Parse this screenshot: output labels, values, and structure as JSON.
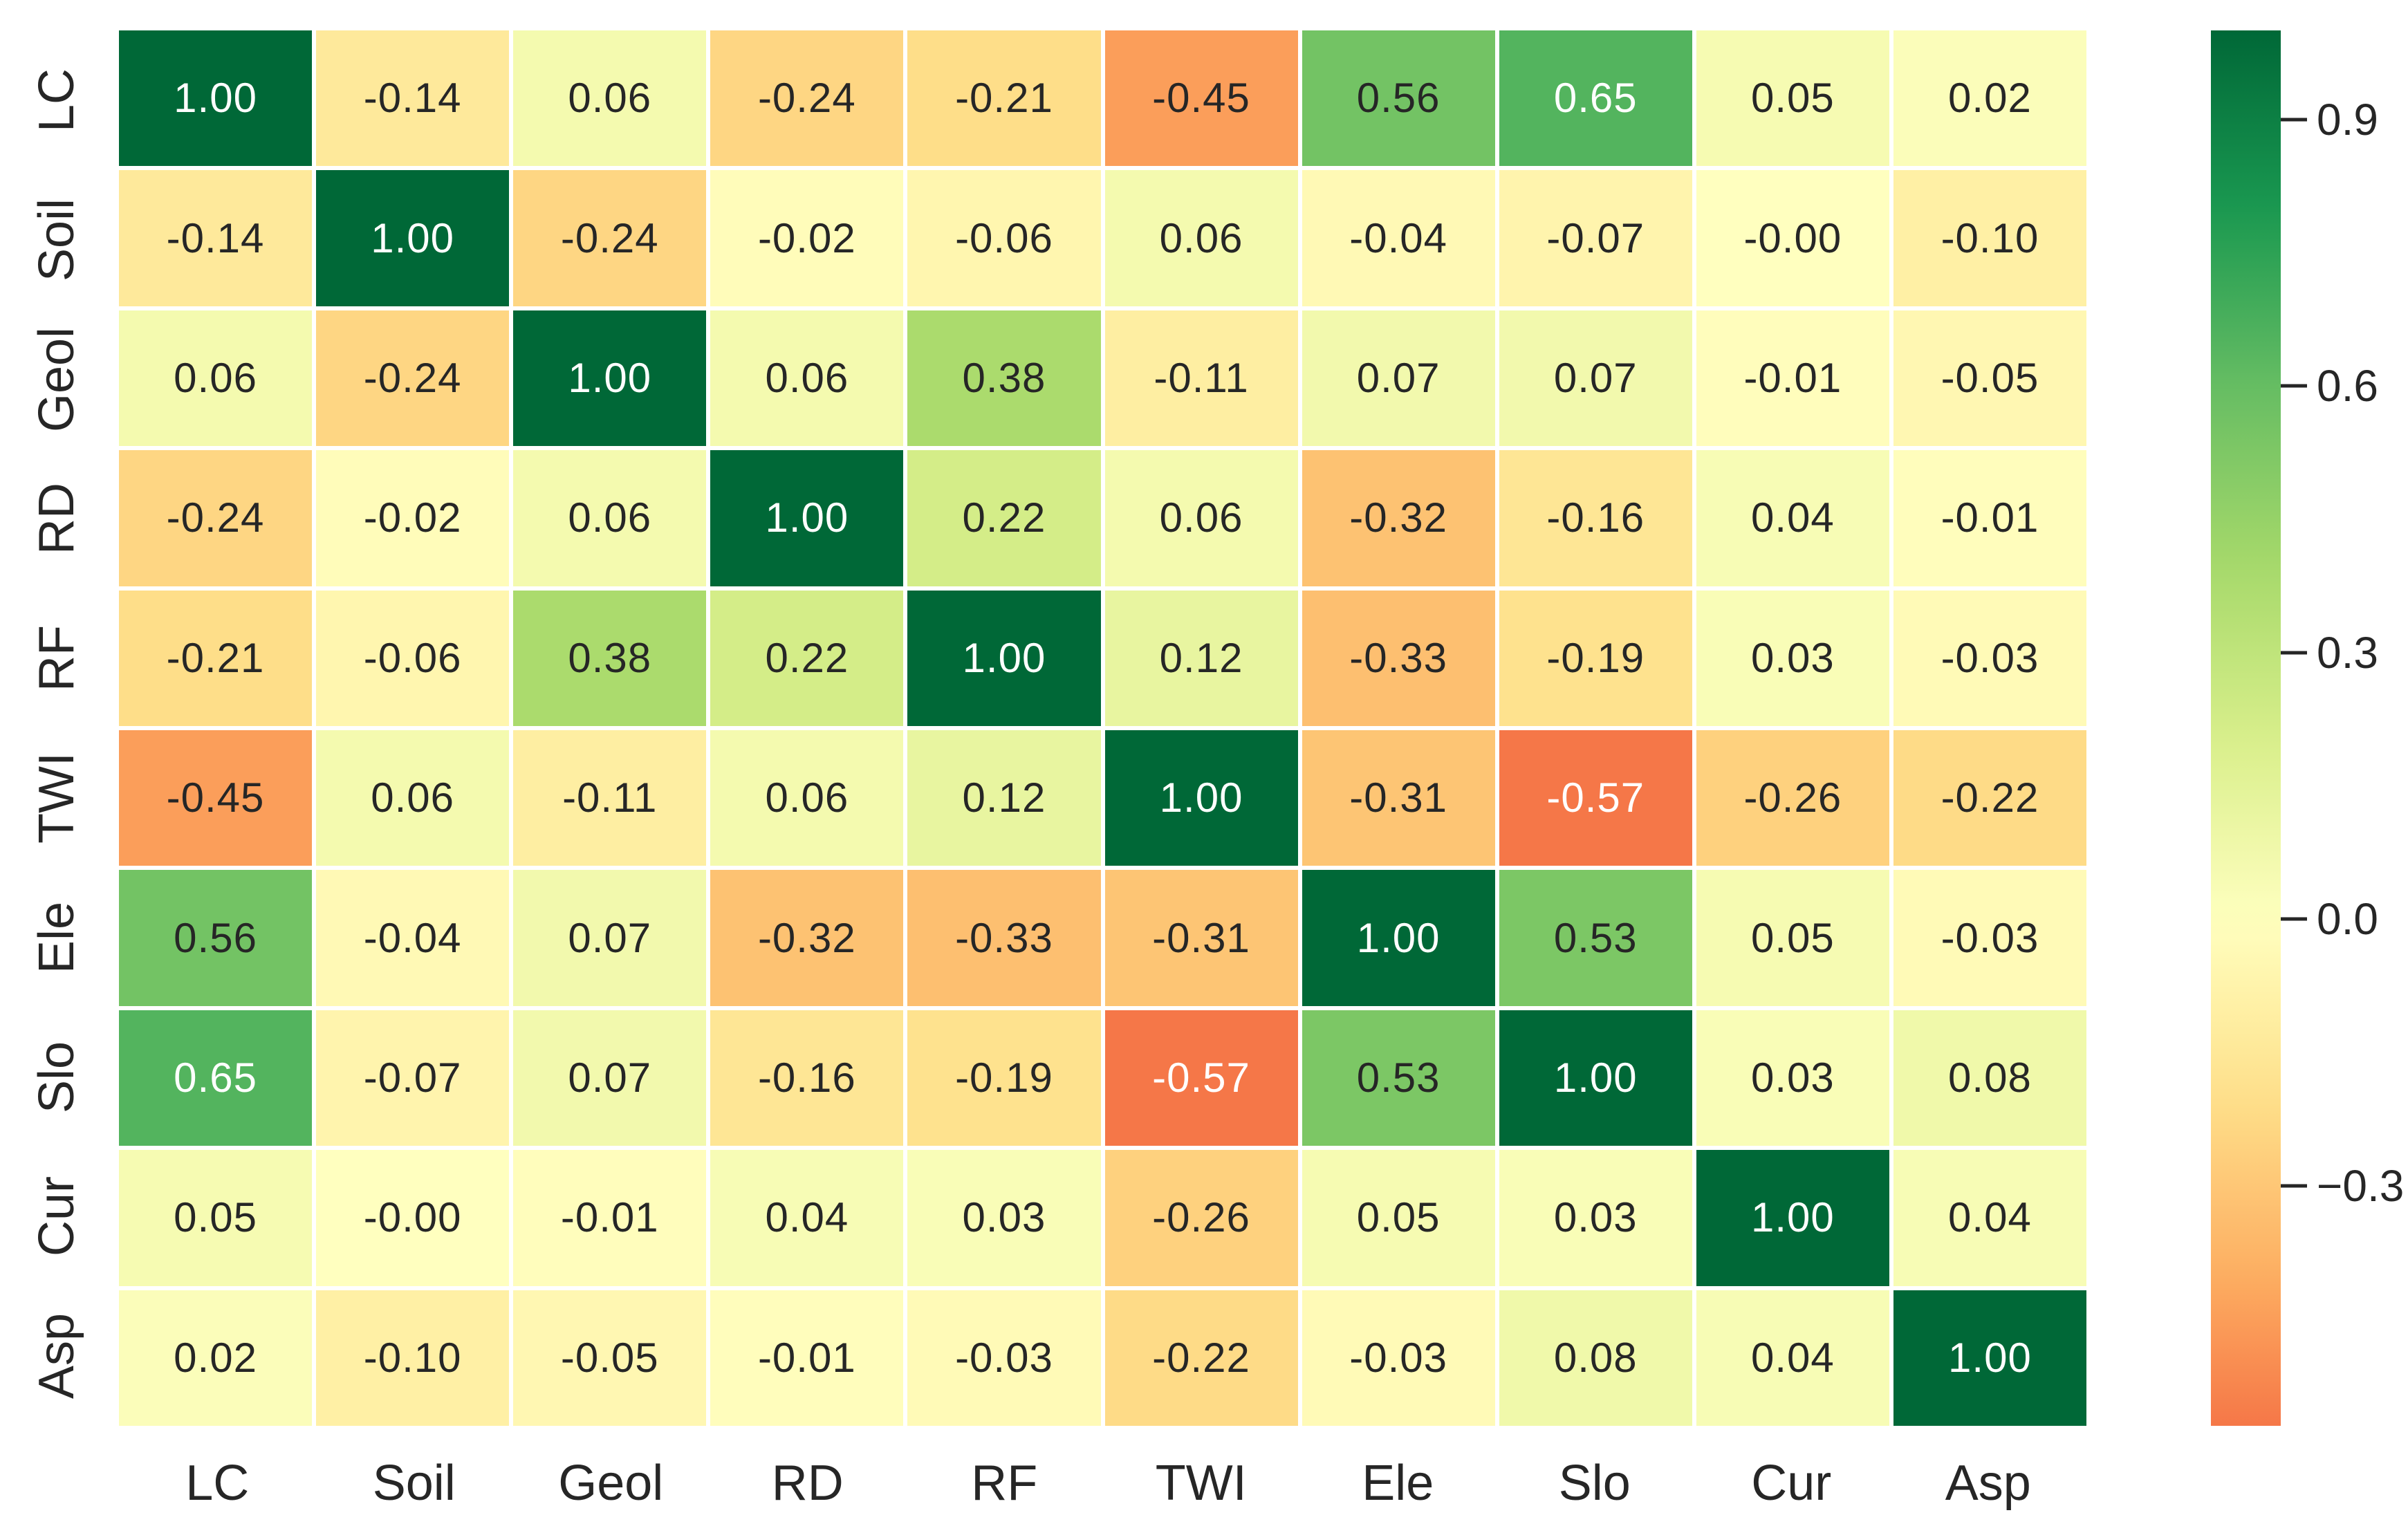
{
  "figure": {
    "background": "#ffffff",
    "axis_label_color": "#262626",
    "tick_color": "#262626"
  },
  "chart_data": {
    "type": "heatmap",
    "description": "Correlation matrix heatmap of landslide conditioning factors",
    "categories": [
      "LC",
      "Soil",
      "Geol",
      "RD",
      "RF",
      "TWI",
      "Ele",
      "Slo",
      "Cur",
      "Asp"
    ],
    "matrix": [
      [
        "1.00",
        "-0.14",
        "0.06",
        "-0.24",
        "-0.21",
        "-0.45",
        "0.56",
        "0.65",
        "0.05",
        "0.02"
      ],
      [
        "-0.14",
        "1.00",
        "-0.24",
        "-0.02",
        "-0.06",
        "0.06",
        "-0.04",
        "-0.07",
        "-0.00",
        "-0.10"
      ],
      [
        "0.06",
        "-0.24",
        "1.00",
        "0.06",
        "0.38",
        "-0.11",
        "0.07",
        "0.07",
        "-0.01",
        "-0.05"
      ],
      [
        "-0.24",
        "-0.02",
        "0.06",
        "1.00",
        "0.22",
        "0.06",
        "-0.32",
        "-0.16",
        "0.04",
        "-0.01"
      ],
      [
        "-0.21",
        "-0.06",
        "0.38",
        "0.22",
        "1.00",
        "0.12",
        "-0.33",
        "-0.19",
        "0.03",
        "-0.03"
      ],
      [
        "-0.45",
        "0.06",
        "-0.11",
        "0.06",
        "0.12",
        "1.00",
        "-0.31",
        "-0.57",
        "-0.26",
        "-0.22"
      ],
      [
        "0.56",
        "-0.04",
        "0.07",
        "-0.32",
        "-0.33",
        "-0.31",
        "1.00",
        "0.53",
        "0.05",
        "-0.03"
      ],
      [
        "0.65",
        "-0.07",
        "0.07",
        "-0.16",
        "-0.19",
        "-0.57",
        "0.53",
        "1.00",
        "0.03",
        "0.08"
      ],
      [
        "0.05",
        "-0.00",
        "-0.01",
        "0.04",
        "0.03",
        "-0.26",
        "0.05",
        "0.03",
        "1.00",
        "0.04"
      ],
      [
        "0.02",
        "-0.10",
        "-0.05",
        "-0.01",
        "-0.03",
        "-0.22",
        "-0.03",
        "0.08",
        "0.04",
        "1.00"
      ]
    ],
    "colormap": {
      "name": "RdYlGn",
      "anchors": [
        "#a50026",
        "#d73027",
        "#f46d43",
        "#fdae61",
        "#fee08b",
        "#ffffbf",
        "#d9ef8b",
        "#a6d96a",
        "#66bd63",
        "#1a9850",
        "#006837"
      ]
    },
    "normalization": {
      "center": 0,
      "vmin": -1,
      "vmax": 1
    },
    "colorbar": {
      "position": "right",
      "top_value": 1.0,
      "bottom_value": -0.57,
      "ticks": [
        {
          "label": "0.9",
          "value": 0.9
        },
        {
          "label": "0.6",
          "value": 0.6
        },
        {
          "label": "0.3",
          "value": 0.3
        },
        {
          "label": "0.0",
          "value": 0.0
        },
        {
          "label": "−0.3",
          "value": -0.3
        }
      ]
    },
    "annotation_text_colors": {
      "light": "#ffffff",
      "dark": "#262626"
    },
    "grid_lines": "white cell separators",
    "legend_position": "right"
  }
}
